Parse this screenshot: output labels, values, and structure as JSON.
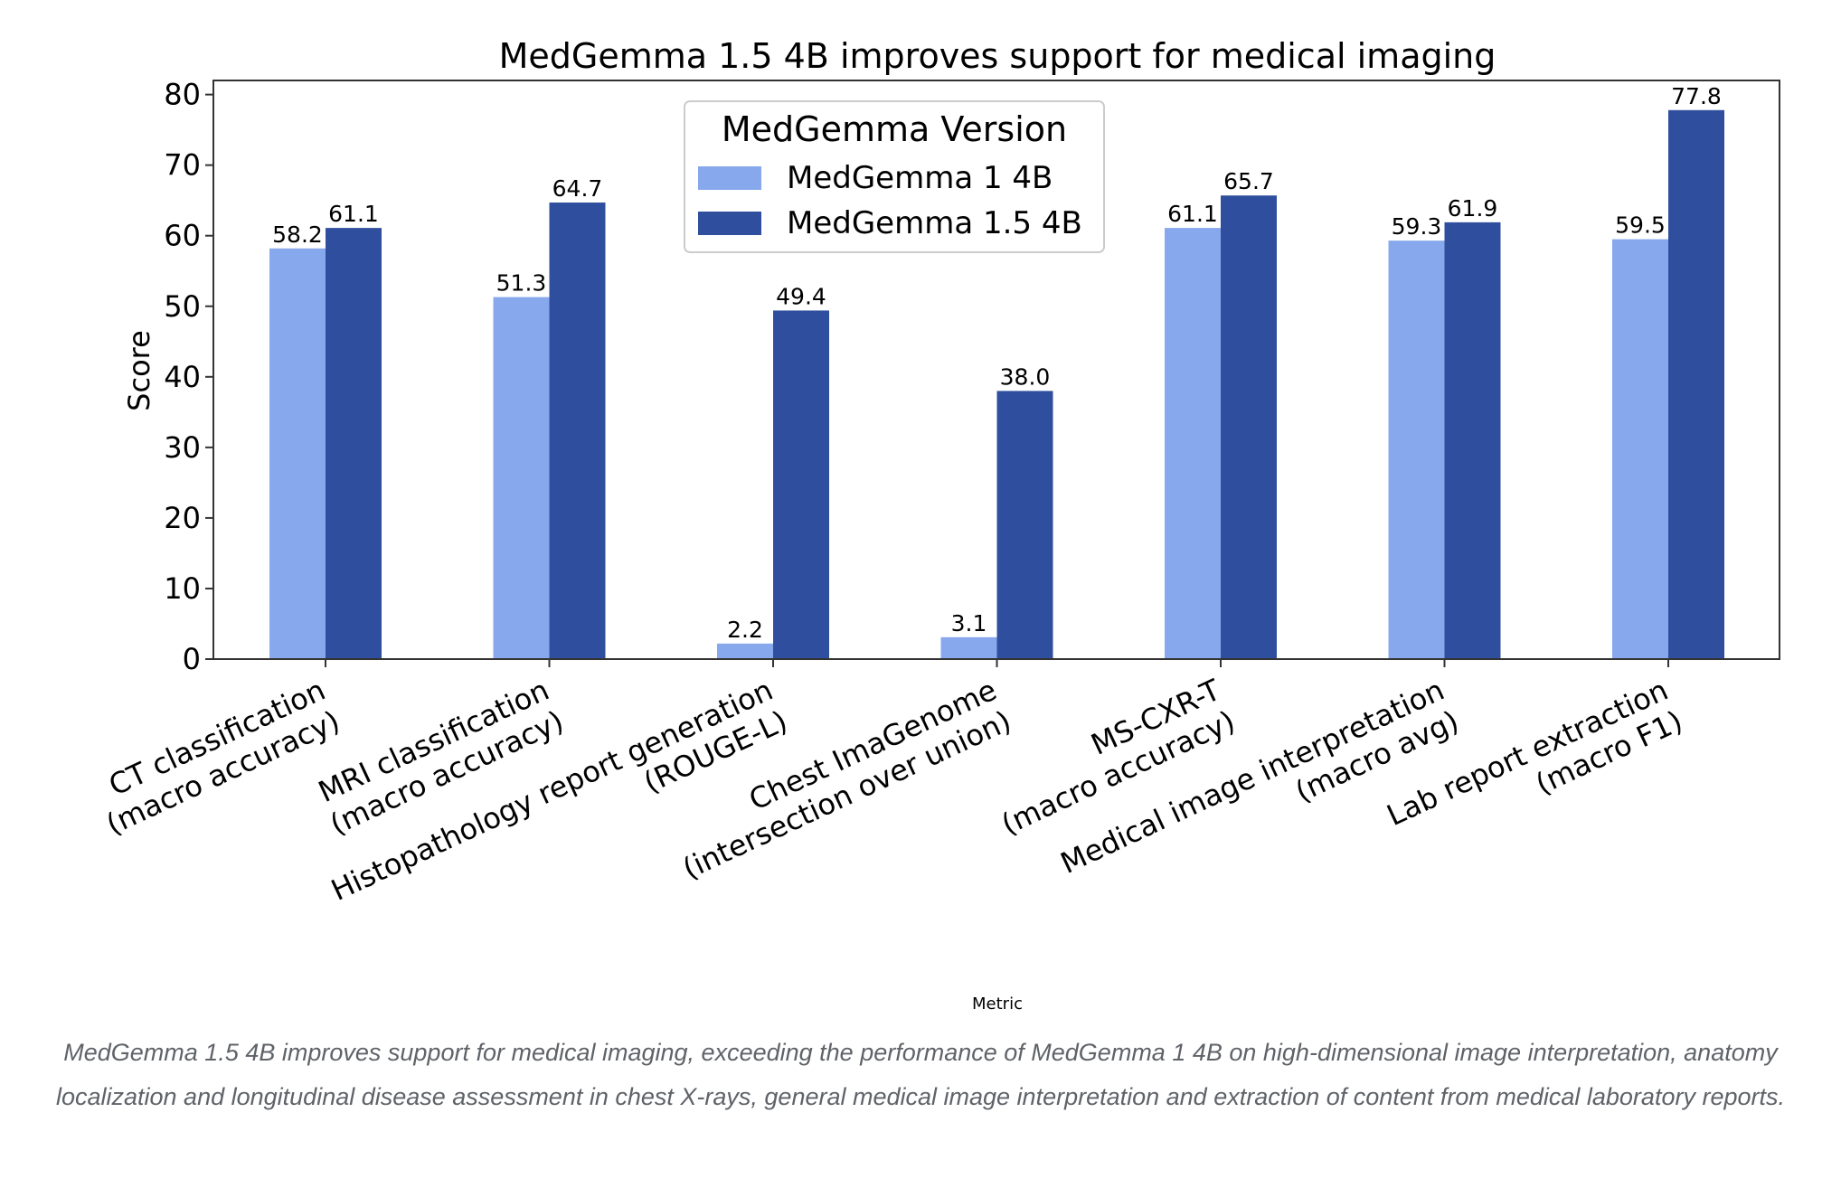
{
  "chart_data": {
    "type": "bar",
    "title": "MedGemma 1.5 4B improves support for medical imaging",
    "xlabel": "Metric",
    "ylabel": "Score",
    "ylim": [
      0,
      82
    ],
    "yticks": [
      0,
      10,
      20,
      30,
      40,
      50,
      60,
      70,
      80
    ],
    "categories": [
      [
        "CT classification",
        "(macro accuracy)"
      ],
      [
        "MRI classification",
        "(macro accuracy)"
      ],
      [
        "Histopathology report generation",
        "(ROUGE-L)"
      ],
      [
        "Chest ImaGenome",
        "(intersection over union)"
      ],
      [
        "MS-CXR-T",
        "(macro accuracy)"
      ],
      [
        "Medical image interpretation",
        "(macro avg)"
      ],
      [
        "Lab report extraction",
        "(macro F1)"
      ]
    ],
    "series": [
      {
        "name": "MedGemma 1 4B",
        "color": "#87a8ec",
        "values": [
          58.2,
          51.3,
          2.2,
          3.1,
          61.1,
          59.3,
          59.5
        ],
        "labels": [
          "58.2",
          "51.3",
          "2.2",
          "3.1",
          "61.1",
          "59.3",
          "59.5"
        ]
      },
      {
        "name": "MedGemma 1.5 4B",
        "color": "#2f4f9e",
        "values": [
          61.1,
          64.7,
          49.4,
          38.0,
          65.7,
          61.9,
          77.8
        ],
        "labels": [
          "61.1",
          "64.7",
          "49.4",
          "38.0",
          "65.7",
          "61.9",
          "77.8"
        ]
      }
    ],
    "legend": {
      "title": "MedGemma Version",
      "position": "top-center"
    },
    "grid": false
  },
  "caption": "MedGemma 1.5 4B improves support for medical imaging, exceeding the performance of MedGemma 1 4B on high-dimensional image interpretation, anatomy localization and longitudinal disease assessment in chest X-rays, general medical image interpretation and extraction of content from medical laboratory reports."
}
